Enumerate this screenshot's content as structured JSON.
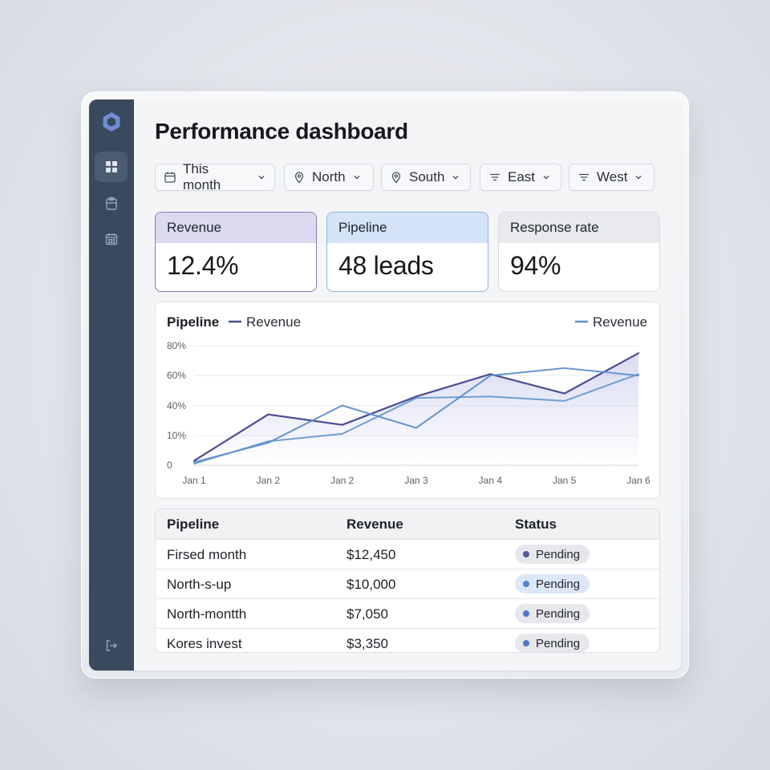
{
  "page": {
    "title": "Performance dashboard"
  },
  "sidebar": {
    "items": [
      {
        "icon": "grid-icon",
        "active": true
      },
      {
        "icon": "clipboard-icon",
        "active": false
      },
      {
        "icon": "calendar-icon",
        "active": false
      }
    ],
    "bottom_icon": "logout-icon"
  },
  "filters": [
    {
      "label": "This month",
      "icon": "calendar-icon"
    },
    {
      "label": "North",
      "icon": "location-pin-icon"
    },
    {
      "label": "South",
      "icon": "location-pin-icon"
    },
    {
      "label": "East",
      "icon": "filter-icon"
    },
    {
      "label": "West",
      "icon": "filter-icon"
    }
  ],
  "kpis": [
    {
      "label": "Revenue",
      "value": "12.4%",
      "header_color": "#dcdaf0",
      "border_color": "#7f7bb5"
    },
    {
      "label": "Pipeline",
      "value": "48 leads",
      "header_color": "#d4e3f6",
      "border_color": "#8db3e0"
    },
    {
      "label": "Response rate",
      "value": "94%",
      "header_color": "#e8eaee",
      "border_color": "#d7dbe2"
    }
  ],
  "chart": {
    "title": "Pipeline",
    "legend": [
      {
        "label": "Revenue",
        "color": "#4a4e93"
      },
      {
        "label": "Revenue",
        "color": "#5b8fca"
      }
    ]
  },
  "chart_data": {
    "type": "line",
    "x": [
      "Jan 1",
      "Jan 2",
      "Jan 2",
      "Jan 3",
      "Jan 4",
      "Jan 5",
      "Jan 6"
    ],
    "y_ticks": [
      "80%",
      "60%",
      "40%",
      "10%",
      "0"
    ],
    "ylim": [
      0,
      80
    ],
    "grid": true,
    "legend_placement": "top",
    "series": [
      {
        "name": "Revenue",
        "color": "#4a4e93",
        "points": [
          [
            0,
            3
          ],
          [
            1,
            34
          ],
          [
            2,
            27
          ],
          [
            3,
            46
          ],
          [
            4,
            61
          ],
          [
            5,
            48
          ],
          [
            6,
            75
          ]
        ]
      },
      {
        "name": "Revenue",
        "color": "#5b8fca",
        "points": [
          [
            0,
            2
          ],
          [
            1,
            15
          ],
          [
            2,
            40
          ],
          [
            3,
            25
          ],
          [
            4,
            60
          ],
          [
            5,
            65
          ],
          [
            6,
            60
          ]
        ]
      },
      {
        "name": "",
        "color": "#5b8fca",
        "points": [
          [
            0,
            1
          ],
          [
            1,
            16
          ],
          [
            2,
            21
          ],
          [
            3,
            45
          ],
          [
            4,
            46
          ],
          [
            5,
            43
          ],
          [
            6,
            61
          ]
        ]
      }
    ]
  },
  "table": {
    "headers": [
      "Pipeline",
      "Revenue",
      "Status"
    ],
    "rows": [
      {
        "name": "Firsed month",
        "revenue": "$12,450",
        "status": "Pending",
        "dot": "#5a5aa3",
        "badge_bg": "#e6e8ec"
      },
      {
        "name": "North-s-up",
        "revenue": "$10,000",
        "status": "Pending",
        "dot": "#4f86d6",
        "badge_bg": "#dce8f7"
      },
      {
        "name": "North-montth",
        "revenue": "$7,050",
        "status": "Pending",
        "dot": "#4f77c9",
        "badge_bg": "#e6e8ec"
      },
      {
        "name": "Kores invest",
        "revenue": "$3,350",
        "status": "Pending",
        "dot": "#4f77c9",
        "badge_bg": "#e6e8ec"
      }
    ]
  }
}
